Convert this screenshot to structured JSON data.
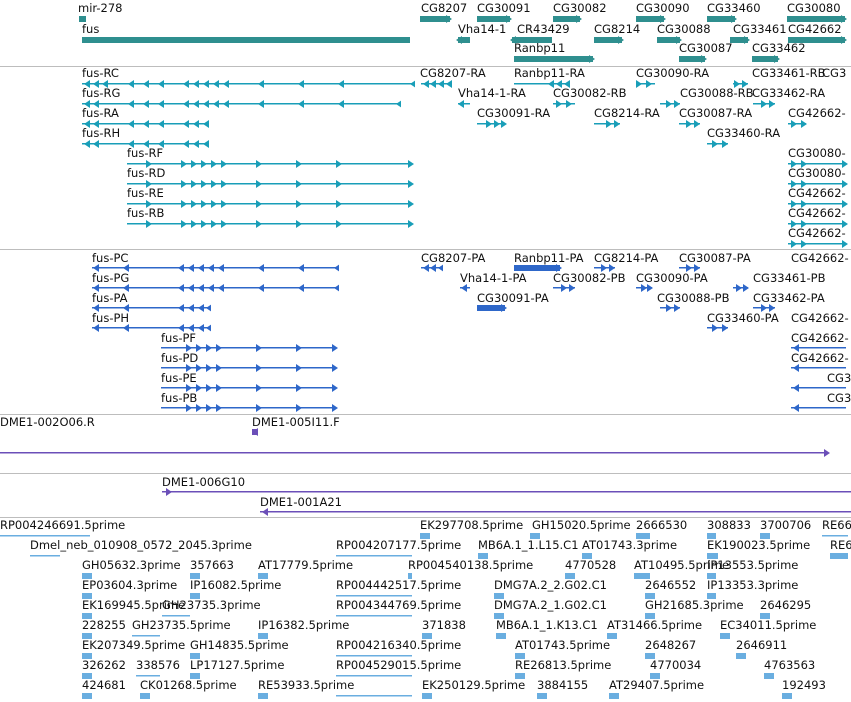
{
  "colors": {
    "gene": "#2f8f8f",
    "transcript": "#199eb8",
    "protein": "#2e67c9",
    "clone": "#6b4fb8",
    "est": "#6aaee0",
    "separator": "#bdbdbd"
  },
  "tracks": {
    "genes": {
      "labels": [
        "mir-278",
        "fus",
        "CG8207",
        "CG30091",
        "CG30082",
        "CG30090",
        "CG33460",
        "CG30080",
        "Vha14-1",
        "CR43429",
        "CG8214",
        "CG30088",
        "CG33461",
        "CG42662",
        "Ranbp11",
        "CG30087",
        "CG33462"
      ]
    },
    "transcripts": {
      "labels": [
        "fus-RC",
        "fus-RG",
        "fus-RA",
        "fus-RH",
        "fus-RF",
        "fus-RD",
        "fus-RE",
        "fus-RB",
        "CG8207-RA",
        "Ranbp11-RA",
        "CG30090-RA",
        "CG33461-RB",
        "CG3",
        "Vha14-1-RA",
        "CG30082-RB",
        "CG30088-RB",
        "CG33462-RA",
        "CG30091-RA",
        "CG8214-RA",
        "CG30087-RA",
        "CG42662-",
        "CG33460-RA",
        "CG30080-",
        "CG30080-",
        "CG42662-",
        "CG42662-",
        "CG42662-"
      ]
    },
    "proteins": {
      "labels": [
        "fus-PC",
        "fus-PG",
        "fus-PA",
        "fus-PH",
        "fus-PF",
        "fus-PD",
        "fus-PE",
        "fus-PB",
        "CG8207-PA",
        "Ranbp11-PA",
        "CG8214-PA",
        "CG30087-PA",
        "CG42662-",
        "Vha14-1-PA",
        "CG30082-PB",
        "CG30090-PA",
        "CG33461-PB",
        "CG30091-PA",
        "CG30088-PB",
        "CG33462-PA",
        "CG33460-PA",
        "CG42662-",
        "CG42662-",
        "CG42662-",
        "CG3",
        "CG3"
      ]
    },
    "clones": {
      "labels": [
        "DME1-002O06.R",
        "DME1-005I11.F",
        "DME1-006G10",
        "DME1-001A21"
      ]
    },
    "ests": {
      "labels": [
        "RP004246691.5prime",
        "EK297708.5prime",
        "GH15020.5prime",
        "2666530",
        "308833",
        "3700706",
        "RE66",
        "Dmel_neb_010908_0572_2045.3prime",
        "RP004207177.5prime",
        "MB6A.1_1.L15.C1",
        "AT01743.3prime",
        "EK190023.5prime",
        "RE6",
        "GH05632.3prime",
        "357663",
        "AT17779.5prime",
        "RP004540138.5prime",
        "4770528",
        "AT10495.5prime",
        "IP13553.5prime",
        "EP03604.3prime",
        "IP16082.5prime",
        "RP004442517.5prime",
        "DMG7A.2_2.G02.C1",
        "2646552",
        "IP13353.3prime",
        "EK169945.5prime",
        "GH23735.3prime",
        "RP004344769.5prime",
        "DMG7A.2_1.G02.C1",
        "GH21685.3prime",
        "2646295",
        "228255",
        "GH23735.5prime",
        "IP16382.5prime",
        "371838",
        "MB6A.1_1.K13.C1",
        "AT31466.5prime",
        "EC34011.5prime",
        "EK207349.5prime",
        "GH14835.5prime",
        "RP004216340.5prime",
        "AT01743.5prime",
        "2648267",
        "2646911",
        "326262",
        "338576",
        "LP17127.5prime",
        "RP004529015.5prime",
        "RE26813.5prime",
        "4770034",
        "4763563",
        "424681",
        "CK01268.5prime",
        "RE53933.5prime",
        "EK250129.5prime",
        "3884155",
        "AT29407.5prime",
        "192493"
      ]
    }
  }
}
